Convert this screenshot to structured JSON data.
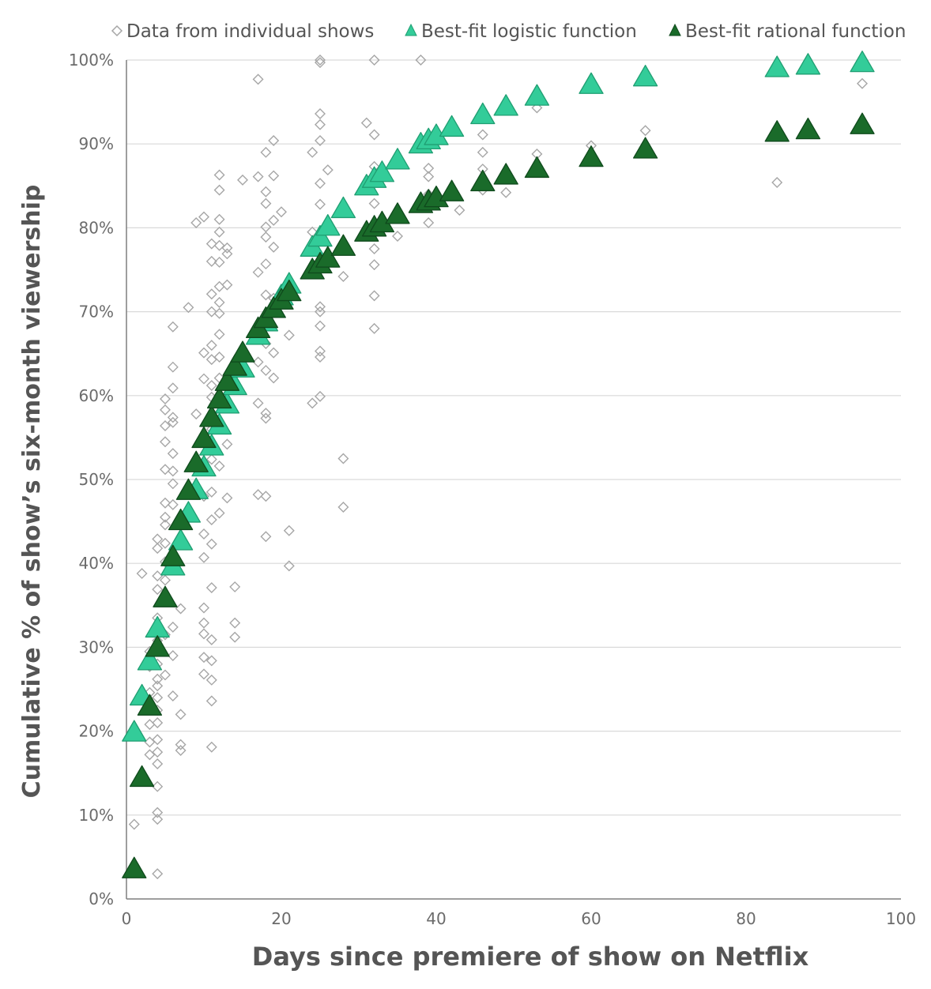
{
  "chart_data": {
    "type": "scatter",
    "title": "",
    "xlabel": "Days since premiere of show on Netflix",
    "ylabel": "Cumulative % of show’s six-month viewership",
    "xlim": [
      0,
      100
    ],
    "ylim": [
      0,
      100
    ],
    "x_ticks": [
      0,
      20,
      40,
      60,
      80,
      100
    ],
    "y_ticks": [
      0,
      10,
      20,
      30,
      40,
      50,
      60,
      70,
      80,
      90,
      100
    ],
    "x_tick_labels": [
      "0",
      "20",
      "40",
      "60",
      "80",
      "100"
    ],
    "y_tick_labels": [
      "0%",
      "10%",
      "20%",
      "30%",
      "40%",
      "50%",
      "60%",
      "70%",
      "80%",
      "90%",
      "100%"
    ],
    "grid": "horizontal",
    "legend_position": "top",
    "colors": {
      "shows": "#a6a6a6",
      "logistic_fill": "#33cc99",
      "logistic_stroke": "#1f9e72",
      "rational_fill": "#1a6b2a",
      "rational_stroke": "#0f4a1c",
      "grid": "#d9d9d9",
      "axis": "#7f7f7f"
    },
    "series": [
      {
        "name": "Data from individual shows",
        "marker": "diamond-open",
        "points": [
          [
            1,
            8.9
          ],
          [
            2,
            38.8
          ],
          [
            3,
            17.2
          ],
          [
            3,
            18.7
          ],
          [
            3,
            20.8
          ],
          [
            3,
            24.6
          ],
          [
            3,
            27.7
          ],
          [
            3,
            29.5
          ],
          [
            4,
            3.0
          ],
          [
            4,
            9.5
          ],
          [
            4,
            10.3
          ],
          [
            4,
            13.4
          ],
          [
            4,
            16.1
          ],
          [
            4,
            17.5
          ],
          [
            4,
            19.0
          ],
          [
            4,
            21.0
          ],
          [
            4,
            22.5
          ],
          [
            4,
            24.0
          ],
          [
            4,
            25.4
          ],
          [
            4,
            26.2
          ],
          [
            4,
            28.0
          ],
          [
            4,
            30.8
          ],
          [
            4,
            33.5
          ],
          [
            4,
            36.9
          ],
          [
            4,
            38.5
          ],
          [
            4,
            41.8
          ],
          [
            4,
            42.9
          ],
          [
            5,
            26.7
          ],
          [
            5,
            31.5
          ],
          [
            5,
            35.9
          ],
          [
            5,
            38.0
          ],
          [
            5,
            40.2
          ],
          [
            5,
            42.4
          ],
          [
            5,
            44.6
          ],
          [
            5,
            45.5
          ],
          [
            5,
            47.2
          ],
          [
            5,
            51.2
          ],
          [
            5,
            54.5
          ],
          [
            5,
            56.4
          ],
          [
            5,
            58.3
          ],
          [
            5,
            59.6
          ],
          [
            6,
            24.2
          ],
          [
            6,
            29.0
          ],
          [
            6,
            32.4
          ],
          [
            6,
            47.0
          ],
          [
            6,
            49.5
          ],
          [
            6,
            51.0
          ],
          [
            6,
            53.1
          ],
          [
            6,
            56.8
          ],
          [
            6,
            57.4
          ],
          [
            6,
            60.9
          ],
          [
            6,
            63.4
          ],
          [
            6,
            68.2
          ],
          [
            7,
            17.7
          ],
          [
            7,
            18.4
          ],
          [
            7,
            22.0
          ],
          [
            7,
            34.6
          ],
          [
            8,
            70.5
          ],
          [
            9,
            57.8
          ],
          [
            9,
            80.6
          ],
          [
            10,
            26.8
          ],
          [
            10,
            28.8
          ],
          [
            10,
            31.6
          ],
          [
            10,
            32.9
          ],
          [
            10,
            34.7
          ],
          [
            10,
            40.7
          ],
          [
            10,
            43.5
          ],
          [
            10,
            48.0
          ],
          [
            10,
            52.0
          ],
          [
            10,
            62.0
          ],
          [
            10,
            65.1
          ],
          [
            10,
            81.3
          ],
          [
            11,
            18.1
          ],
          [
            11,
            23.6
          ],
          [
            11,
            26.1
          ],
          [
            11,
            28.4
          ],
          [
            11,
            30.9
          ],
          [
            11,
            37.1
          ],
          [
            11,
            42.3
          ],
          [
            11,
            45.2
          ],
          [
            11,
            48.5
          ],
          [
            11,
            52.4
          ],
          [
            11,
            56.0
          ],
          [
            11,
            59.8
          ],
          [
            11,
            61.2
          ],
          [
            11,
            64.3
          ],
          [
            11,
            66.0
          ],
          [
            11,
            70.0
          ],
          [
            11,
            72.1
          ],
          [
            11,
            76.0
          ],
          [
            11,
            78.1
          ],
          [
            12,
            46.0
          ],
          [
            12,
            51.6
          ],
          [
            12,
            56.3
          ],
          [
            12,
            62.1
          ],
          [
            12,
            64.6
          ],
          [
            12,
            67.3
          ],
          [
            12,
            69.8
          ],
          [
            12,
            71.1
          ],
          [
            12,
            73.0
          ],
          [
            12,
            75.9
          ],
          [
            12,
            77.9
          ],
          [
            12,
            79.5
          ],
          [
            12,
            81.0
          ],
          [
            12,
            84.5
          ],
          [
            12,
            86.3
          ],
          [
            13,
            47.8
          ],
          [
            13,
            54.2
          ],
          [
            13,
            73.2
          ],
          [
            13,
            76.9
          ],
          [
            13,
            77.6
          ],
          [
            14,
            31.2
          ],
          [
            14,
            32.9
          ],
          [
            14,
            37.2
          ],
          [
            15,
            85.7
          ],
          [
            17,
            48.2
          ],
          [
            17,
            59.1
          ],
          [
            17,
            64.0
          ],
          [
            17,
            74.7
          ],
          [
            17,
            86.1
          ],
          [
            17,
            97.7
          ],
          [
            18,
            43.2
          ],
          [
            18,
            48.0
          ],
          [
            18,
            57.3
          ],
          [
            18,
            57.9
          ],
          [
            18,
            63.0
          ],
          [
            18,
            66.2
          ],
          [
            18,
            72.0
          ],
          [
            18,
            75.7
          ],
          [
            18,
            78.9
          ],
          [
            18,
            80.1
          ],
          [
            18,
            82.9
          ],
          [
            18,
            84.3
          ],
          [
            18,
            89.0
          ],
          [
            19,
            62.1
          ],
          [
            19,
            65.1
          ],
          [
            19,
            71.6
          ],
          [
            19,
            77.7
          ],
          [
            19,
            80.9
          ],
          [
            19,
            86.2
          ],
          [
            19,
            90.4
          ],
          [
            20,
            81.9
          ],
          [
            21,
            39.7
          ],
          [
            21,
            43.9
          ],
          [
            21,
            67.2
          ],
          [
            24,
            59.1
          ],
          [
            24,
            79.5
          ],
          [
            24,
            89.0
          ],
          [
            25,
            59.9
          ],
          [
            25,
            64.6
          ],
          [
            25,
            65.3
          ],
          [
            25,
            68.3
          ],
          [
            25,
            70.0
          ],
          [
            25,
            70.6
          ],
          [
            25,
            82.8
          ],
          [
            25,
            85.3
          ],
          [
            25,
            90.4
          ],
          [
            25,
            92.3
          ],
          [
            25,
            93.6
          ],
          [
            25,
            99.7
          ],
          [
            25,
            100.0
          ],
          [
            26,
            86.9
          ],
          [
            28,
            46.7
          ],
          [
            28,
            52.5
          ],
          [
            28,
            74.2
          ],
          [
            31,
            92.5
          ],
          [
            32,
            68.0
          ],
          [
            32,
            71.9
          ],
          [
            32,
            75.6
          ],
          [
            32,
            77.5
          ],
          [
            32,
            80.4
          ],
          [
            32,
            82.9
          ],
          [
            32,
            87.3
          ],
          [
            32,
            91.1
          ],
          [
            32,
            100.0
          ],
          [
            35,
            79.0
          ],
          [
            38,
            100.0
          ],
          [
            39,
            80.6
          ],
          [
            39,
            84.0
          ],
          [
            39,
            86.1
          ],
          [
            39,
            87.1
          ],
          [
            43,
            82.1
          ],
          [
            46,
            84.5
          ],
          [
            46,
            87.0
          ],
          [
            46,
            89.0
          ],
          [
            46,
            91.1
          ],
          [
            49,
            84.2
          ],
          [
            53,
            88.8
          ],
          [
            53,
            94.3
          ],
          [
            60,
            89.8
          ],
          [
            67,
            91.6
          ],
          [
            84,
            85.4
          ],
          [
            95,
            97.2
          ]
        ]
      },
      {
        "name": "Best-fit logistic function",
        "marker": "triangle",
        "points": [
          [
            1,
            19.8
          ],
          [
            2,
            24.1
          ],
          [
            3,
            28.3
          ],
          [
            4,
            32.2
          ],
          [
            6,
            39.6
          ],
          [
            7,
            42.6
          ],
          [
            8,
            45.9
          ],
          [
            9,
            48.7
          ],
          [
            10,
            51.4
          ],
          [
            11,
            53.9
          ],
          [
            12,
            56.4
          ],
          [
            13,
            58.9
          ],
          [
            14,
            61.1
          ],
          [
            15,
            63.2
          ],
          [
            17,
            67.1
          ],
          [
            18,
            68.7
          ],
          [
            19,
            70.3
          ],
          [
            20,
            71.8
          ],
          [
            21,
            73.2
          ],
          [
            24,
            77.6
          ],
          [
            25,
            78.8
          ],
          [
            26,
            80.1
          ],
          [
            28,
            82.2
          ],
          [
            31,
            84.9
          ],
          [
            32,
            85.8
          ],
          [
            33,
            86.5
          ],
          [
            35,
            88.0
          ],
          [
            38,
            89.9
          ],
          [
            39,
            90.4
          ],
          [
            40,
            90.9
          ],
          [
            42,
            91.9
          ],
          [
            46,
            93.4
          ],
          [
            49,
            94.4
          ],
          [
            53,
            95.6
          ],
          [
            60,
            97.0
          ],
          [
            67,
            97.9
          ],
          [
            84,
            99.0
          ],
          [
            88,
            99.3
          ],
          [
            95,
            99.6
          ]
        ]
      },
      {
        "name": "Best-fit rational function",
        "marker": "triangle",
        "points": [
          [
            1,
            3.5
          ],
          [
            2,
            14.4
          ],
          [
            3,
            22.9
          ],
          [
            4,
            29.9
          ],
          [
            5,
            35.8
          ],
          [
            6,
            40.7
          ],
          [
            7,
            45.0
          ],
          [
            8,
            48.6
          ],
          [
            9,
            51.9
          ],
          [
            10,
            54.8
          ],
          [
            11,
            57.3
          ],
          [
            12,
            59.5
          ],
          [
            13,
            61.6
          ],
          [
            14,
            63.4
          ],
          [
            15,
            65.0
          ],
          [
            17,
            67.9
          ],
          [
            18,
            69.1
          ],
          [
            19,
            70.3
          ],
          [
            20,
            71.3
          ],
          [
            21,
            72.3
          ],
          [
            24,
            74.9
          ],
          [
            25,
            75.6
          ],
          [
            26,
            76.3
          ],
          [
            28,
            77.7
          ],
          [
            31,
            79.4
          ],
          [
            32,
            80.0
          ],
          [
            33,
            80.5
          ],
          [
            35,
            81.5
          ],
          [
            38,
            82.8
          ],
          [
            39,
            83.1
          ],
          [
            40,
            83.5
          ],
          [
            42,
            84.2
          ],
          [
            46,
            85.4
          ],
          [
            49,
            86.2
          ],
          [
            53,
            87.0
          ],
          [
            60,
            88.3
          ],
          [
            67,
            89.3
          ],
          [
            84,
            91.3
          ],
          [
            88,
            91.6
          ],
          [
            95,
            92.2
          ]
        ]
      }
    ]
  }
}
